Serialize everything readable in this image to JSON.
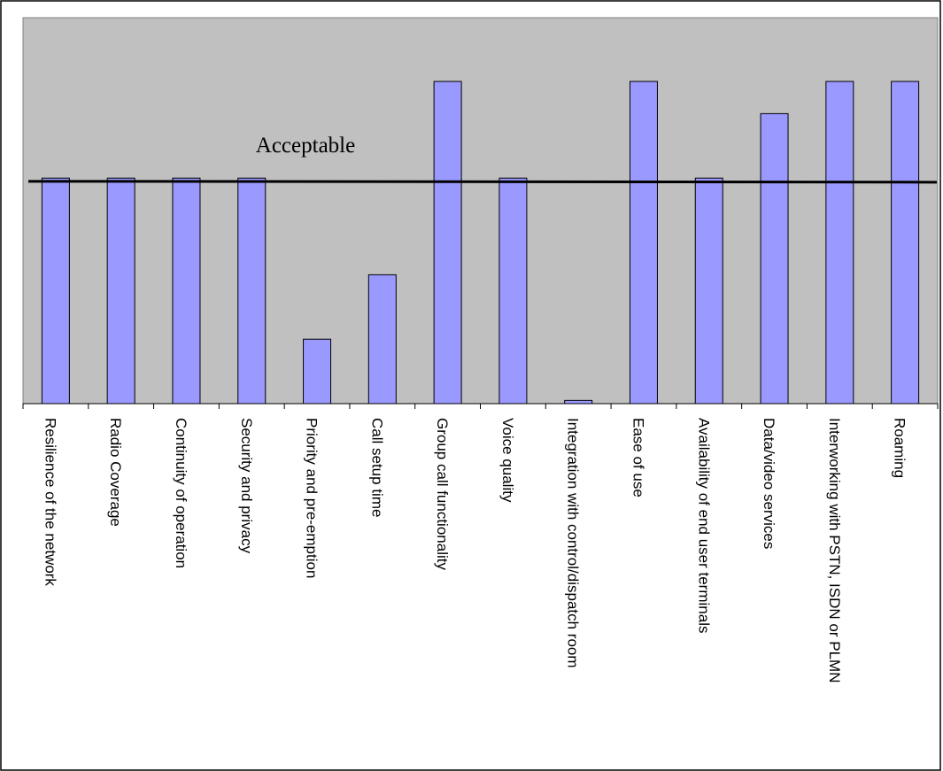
{
  "chart_data": {
    "type": "bar",
    "title": "",
    "xlabel": "",
    "ylabel": "",
    "categories": [
      "Resilience of the network",
      "Radio Coverage",
      "Continuity of operation",
      "Security and privacy",
      "Priority and pre-emption",
      "Call setup time",
      "Group call functionality",
      "Voice quality",
      "Integration with control/dispatch room",
      "Ease of use",
      "Availability of end user terminals",
      "Data/video services",
      "Interworking with PSTN, ISDN or PLMN",
      "Roaming"
    ],
    "values": [
      70,
      70,
      70,
      70,
      20,
      40,
      100,
      70,
      1,
      100,
      70,
      90,
      100,
      100
    ],
    "ylim": [
      0,
      100
    ],
    "grid": false,
    "reference_line": {
      "label": "Acceptable",
      "value": 69
    },
    "colors": {
      "plot_background": "#c0c0c0",
      "bar_fill": "#9999ff",
      "bar_stroke": "#000000",
      "reference_line": "#000000"
    }
  }
}
